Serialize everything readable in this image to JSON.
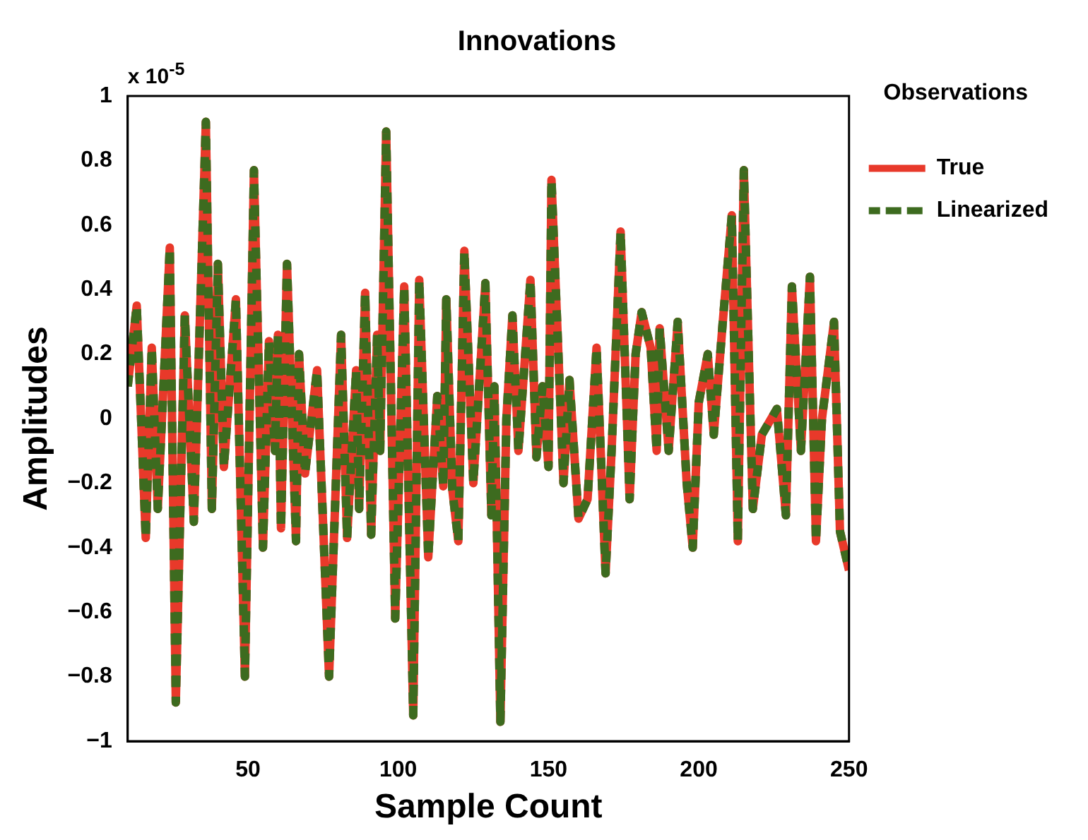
{
  "chart_data": {
    "type": "line",
    "title": "Innovations",
    "xlabel": "Sample Count",
    "ylabel": "Amplitudes",
    "legend_title": "Observations",
    "annotations": [
      "x 10$^{-5}$"
    ],
    "x": [
      10,
      13,
      16,
      18,
      20,
      22,
      24,
      26,
      29,
      32,
      36,
      38,
      40,
      42,
      46,
      49,
      52,
      55,
      57,
      59,
      60,
      61,
      63,
      66,
      67,
      69,
      73,
      77,
      81,
      83,
      86,
      87,
      89,
      91,
      93,
      94,
      96,
      99,
      102,
      105,
      107,
      110,
      113,
      115,
      116,
      118,
      120,
      122,
      125,
      129,
      131,
      132,
      134,
      136,
      138,
      140,
      144,
      146,
      148,
      150,
      151,
      155,
      157,
      160,
      163,
      166,
      169,
      171,
      174,
      177,
      179,
      181,
      184,
      186,
      187,
      190,
      193,
      196,
      198,
      200,
      203,
      205,
      208,
      211,
      213,
      215,
      218,
      221,
      226,
      229,
      231,
      234,
      237,
      239,
      241,
      245,
      247,
      250
    ],
    "series": [
      {
        "name": "True",
        "color": "#e8392a",
        "line_style": "solid",
        "values": [
          0.1,
          0.35,
          -0.37,
          0.22,
          -0.28,
          0.12,
          0.53,
          -0.88,
          0.32,
          -0.32,
          0.92,
          -0.28,
          0.48,
          -0.15,
          0.37,
          -0.8,
          0.77,
          -0.4,
          0.24,
          -0.1,
          0.26,
          -0.34,
          0.48,
          -0.38,
          0.2,
          -0.17,
          0.15,
          -0.8,
          0.26,
          -0.37,
          0.15,
          -0.28,
          0.39,
          -0.36,
          0.26,
          -0.1,
          0.89,
          -0.62,
          0.41,
          -0.92,
          0.43,
          -0.43,
          0.07,
          -0.21,
          0.37,
          -0.22,
          -0.38,
          0.52,
          -0.2,
          0.42,
          -0.3,
          0.1,
          -0.94,
          0.0,
          0.32,
          -0.1,
          0.43,
          -0.12,
          0.1,
          -0.15,
          0.74,
          -0.2,
          0.12,
          -0.31,
          -0.25,
          0.22,
          -0.48,
          -0.1,
          0.58,
          -0.25,
          0.2,
          0.33,
          0.22,
          -0.1,
          0.28,
          -0.1,
          0.3,
          -0.2,
          -0.4,
          0.05,
          0.2,
          -0.05,
          0.3,
          0.63,
          -0.38,
          0.77,
          -0.28,
          -0.05,
          0.03,
          -0.3,
          0.41,
          -0.1,
          0.44,
          -0.38,
          0.0,
          0.3,
          -0.35,
          -0.47
        ]
      },
      {
        "name": "Linearized",
        "color": "#3d6b1f",
        "line_style": "dashed",
        "values": [
          0.1,
          0.35,
          -0.37,
          0.22,
          -0.28,
          0.12,
          0.53,
          -0.88,
          0.32,
          -0.32,
          0.92,
          -0.28,
          0.48,
          -0.15,
          0.37,
          -0.8,
          0.77,
          -0.4,
          0.24,
          -0.1,
          0.26,
          -0.34,
          0.48,
          -0.38,
          0.2,
          -0.17,
          0.15,
          -0.8,
          0.26,
          -0.37,
          0.15,
          -0.28,
          0.39,
          -0.36,
          0.26,
          -0.1,
          0.89,
          -0.62,
          0.41,
          -0.92,
          0.43,
          -0.43,
          0.07,
          -0.21,
          0.37,
          -0.22,
          -0.38,
          0.52,
          -0.2,
          0.42,
          -0.3,
          0.1,
          -0.94,
          0.0,
          0.32,
          -0.1,
          0.43,
          -0.12,
          0.1,
          -0.15,
          0.74,
          -0.2,
          0.12,
          -0.31,
          -0.25,
          0.22,
          -0.48,
          -0.1,
          0.58,
          -0.25,
          0.2,
          0.33,
          0.22,
          -0.1,
          0.28,
          -0.1,
          0.3,
          -0.2,
          -0.4,
          0.05,
          0.2,
          -0.05,
          0.3,
          0.63,
          -0.38,
          0.77,
          -0.28,
          -0.05,
          0.03,
          -0.3,
          0.41,
          -0.1,
          0.44,
          -0.38,
          0.0,
          0.3,
          -0.35,
          -0.47
        ]
      }
    ],
    "xlim": [
      10,
      250
    ],
    "xticks": [
      50,
      100,
      150,
      200,
      250
    ],
    "ylim": [
      -1,
      1
    ],
    "yticks": [
      -1,
      -0.8,
      -0.6,
      -0.4,
      -0.2,
      0,
      0.2,
      0.4,
      0.6,
      0.8,
      1
    ],
    "grid": false,
    "legend": "right",
    "marker": "none"
  }
}
